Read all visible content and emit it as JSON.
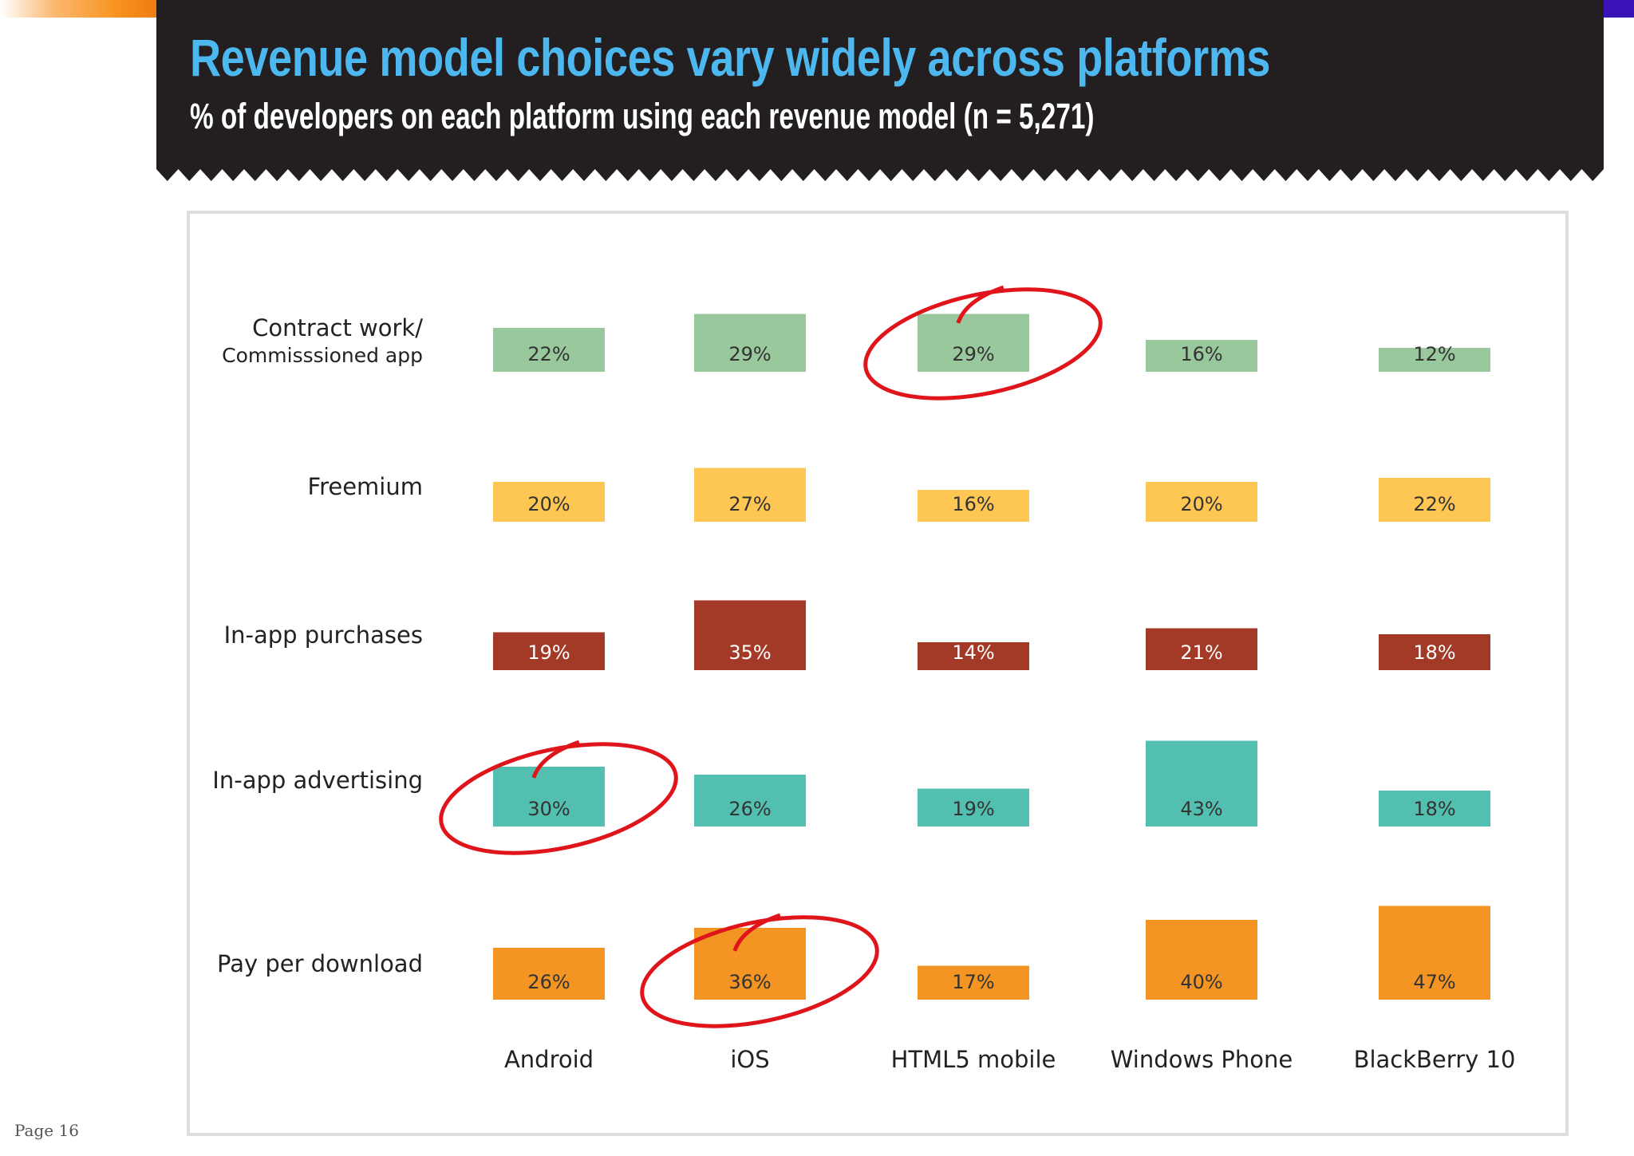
{
  "header": {
    "title": "Revenue model choices vary widely across platforms",
    "subtitle": "% of developers on each platform using each revenue model (n = 5,271)",
    "background_color": "#231f20",
    "title_color": "#4db8f0"
  },
  "footer": {
    "page_label": "Page 16"
  },
  "chart_data": {
    "type": "heatmap",
    "title": "Revenue model choices vary widely across platforms",
    "subtitle": "% of developers on each platform using each revenue model (n = 5,271)",
    "xlabel": "",
    "ylabel": "",
    "unit": "%",
    "categories": [
      "Android",
      "iOS",
      "HTML5 mobile",
      "Windows Phone",
      "BlackBerry 10"
    ],
    "series": [
      {
        "name": "Contract work/",
        "subname": "Commisssioned app",
        "color": "#98c89b",
        "text_color": "#333333",
        "values": [
          22,
          29,
          29,
          16,
          12
        ],
        "labels": [
          "22%",
          "29%",
          "29%",
          "16%",
          "12%"
        ]
      },
      {
        "name": "Freemium",
        "subname": "",
        "color": "#fec653",
        "text_color": "#333333",
        "values": [
          20,
          27,
          16,
          20,
          22
        ],
        "labels": [
          "20%",
          "27%",
          "16%",
          "20%",
          "22%"
        ]
      },
      {
        "name": "In-app purchases",
        "subname": "",
        "color": "#a33a27",
        "text_color": "#ffffff",
        "values": [
          19,
          35,
          14,
          21,
          18
        ],
        "labels": [
          "19%",
          "35%",
          "14%",
          "21%",
          "18%"
        ]
      },
      {
        "name": "In-app advertising",
        "subname": "",
        "color": "#52bfb0",
        "text_color": "#333333",
        "values": [
          30,
          26,
          19,
          43,
          18
        ],
        "labels": [
          "30%",
          "26%",
          "19%",
          "43%",
          "18%"
        ]
      },
      {
        "name": "Pay per download",
        "subname": "",
        "color": "#f39423",
        "text_color": "#333333",
        "values": [
          26,
          36,
          17,
          40,
          47
        ],
        "labels": [
          "26%",
          "36%",
          "17%",
          "40%",
          "47%"
        ]
      }
    ],
    "annotations": [
      {
        "type": "circle",
        "color": "#e0151b",
        "series": 0,
        "category": 2
      },
      {
        "type": "circle",
        "color": "#e0151b",
        "series": 3,
        "category": 0
      },
      {
        "type": "circle",
        "color": "#e0151b",
        "series": 4,
        "category": 1
      }
    ]
  }
}
